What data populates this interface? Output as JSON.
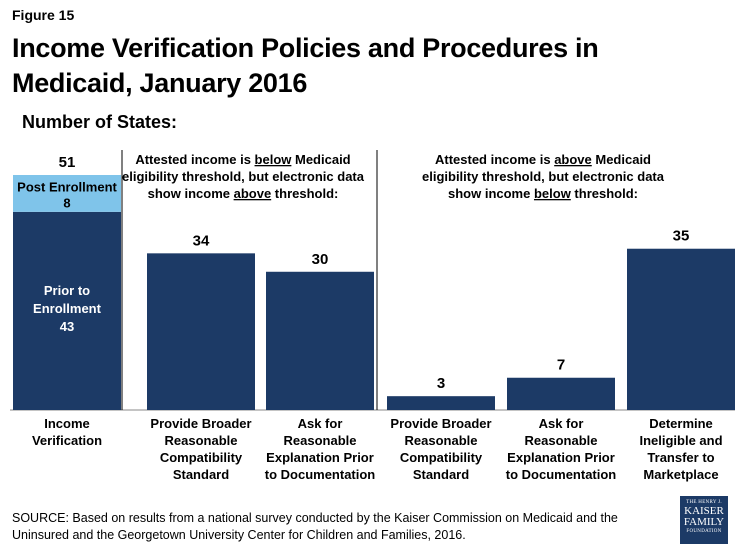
{
  "figure_label": "Figure 15",
  "title": "Income Verification Policies and Procedures in Medicaid, January 2016",
  "subtitle": "Number of States:",
  "source": "SOURCE: Based on results from a national survey conducted by the Kaiser Commission on Medicaid and the Uninsured and the Georgetown University Center for Children and Families, 2016.",
  "logo": {
    "line1": "THE HENRY J.",
    "line2": "KAISER",
    "line3": "FAMILY",
    "line4": "FOUNDATION"
  },
  "colors": {
    "bar": "#1c3a66",
    "post_enrollment": "#7fc4ea",
    "axis": "#888888",
    "divider": "#000000"
  },
  "chart_data": {
    "type": "bar",
    "ylim": [
      0,
      51
    ],
    "stacked_bar": {
      "category": "Income Verification",
      "total": 51,
      "segments": [
        {
          "name": "Prior to Enrollment",
          "value": 43
        },
        {
          "name": "Post Enrollment",
          "value": 8
        }
      ]
    },
    "groups": [
      {
        "header": [
          "Attested income is ",
          "below",
          " Medicaid",
          "eligibility threshold, but electronic data",
          "show income ",
          "above",
          " threshold:"
        ],
        "bars": [
          {
            "category": "Provide Broader Reasonable Compatibility Standard",
            "value": 34
          },
          {
            "category": "Ask for Reasonable Explanation Prior to Documentation",
            "value": 30
          }
        ]
      },
      {
        "header": [
          "Attested income is ",
          "above",
          " Medicaid",
          "eligibility threshold, but electronic data",
          "show income ",
          "below",
          " threshold:"
        ],
        "bars": [
          {
            "category": "Provide Broader Reasonable Compatibility Standard",
            "value": 3
          },
          {
            "category": "Ask for Reasonable Explanation Prior to Documentation",
            "value": 7
          },
          {
            "category": "Determine Ineligible and Transfer to Marketplace",
            "value": 35
          }
        ]
      }
    ]
  }
}
